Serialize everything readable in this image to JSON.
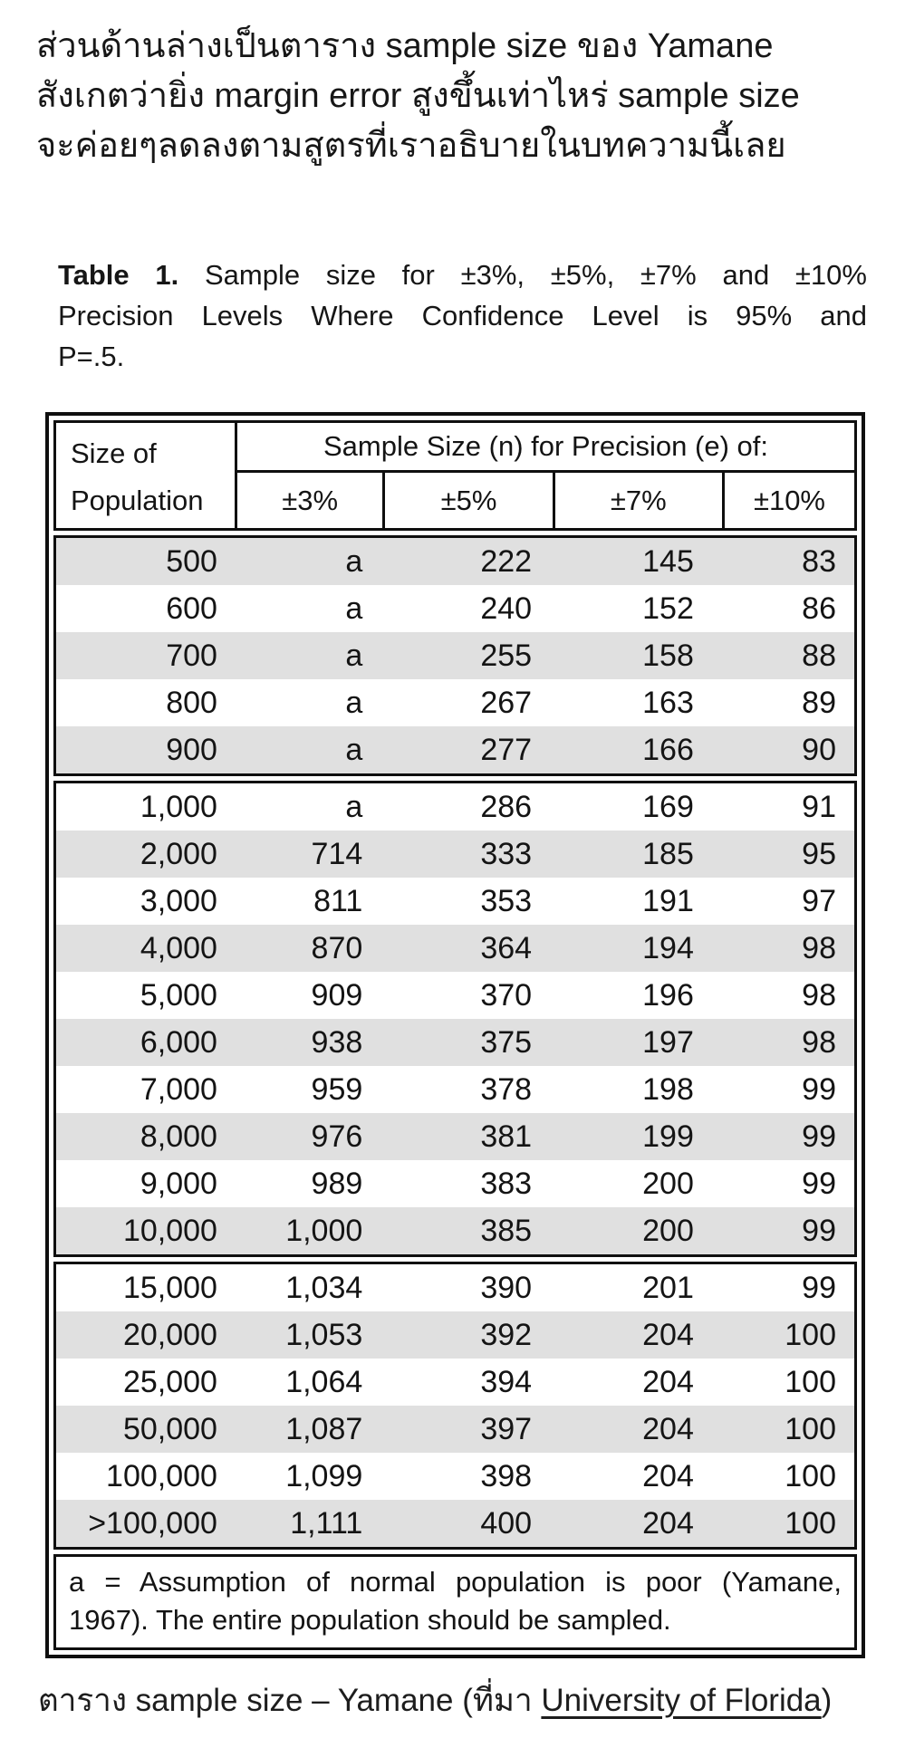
{
  "intro": {
    "lines": [
      "ส่วนด้านล่างเป็นตาราง sample size ของ Yamane",
      "สังเกตว่ายิ่ง margin error สูงขึ้นเท่าไหร่ sample size",
      "จะค่อยๆลดลงตามสูตรที่เราอธิบายในบทความนี้เลย"
    ]
  },
  "table_title": {
    "label": "Table 1.",
    "line1_rest": "Sample size for ±3%, ±5%, ±7% and ±10%",
    "line2": "Precision Levels Where Confidence Level is 95% and",
    "line3": "P=.5."
  },
  "table": {
    "header": {
      "row_label_line1": "Size of",
      "row_label_line2": "Population",
      "span_label": "Sample Size (n) for Precision (e) of:",
      "precision_cols": [
        "±3%",
        "±5%",
        "±7%",
        "±10%"
      ]
    },
    "columns": [
      "Size of Population",
      "±3%",
      "±5%",
      "±7%",
      "±10%"
    ],
    "groups": [
      {
        "rows": [
          [
            "500",
            "a",
            "222",
            "145",
            "83"
          ],
          [
            "600",
            "a",
            "240",
            "152",
            "86"
          ],
          [
            "700",
            "a",
            "255",
            "158",
            "88"
          ],
          [
            "800",
            "a",
            "267",
            "163",
            "89"
          ],
          [
            "900",
            "a",
            "277",
            "166",
            "90"
          ]
        ]
      },
      {
        "rows": [
          [
            "1,000",
            "a",
            "286",
            "169",
            "91"
          ],
          [
            "2,000",
            "714",
            "333",
            "185",
            "95"
          ],
          [
            "3,000",
            "811",
            "353",
            "191",
            "97"
          ],
          [
            "4,000",
            "870",
            "364",
            "194",
            "98"
          ],
          [
            "5,000",
            "909",
            "370",
            "196",
            "98"
          ],
          [
            "6,000",
            "938",
            "375",
            "197",
            "98"
          ],
          [
            "7,000",
            "959",
            "378",
            "198",
            "99"
          ],
          [
            "8,000",
            "976",
            "381",
            "199",
            "99"
          ],
          [
            "9,000",
            "989",
            "383",
            "200",
            "99"
          ],
          [
            "10,000",
            "1,000",
            "385",
            "200",
            "99"
          ]
        ]
      },
      {
        "rows": [
          [
            "15,000",
            "1,034",
            "390",
            "201",
            "99"
          ],
          [
            "20,000",
            "1,053",
            "392",
            "204",
            "100"
          ],
          [
            "25,000",
            "1,064",
            "394",
            "204",
            "100"
          ],
          [
            "50,000",
            "1,087",
            "397",
            "204",
            "100"
          ],
          [
            "100,000",
            "1,099",
            "398",
            "204",
            "100"
          ],
          [
            ">100,000",
            "1,111",
            "400",
            "204",
            "100"
          ]
        ]
      }
    ],
    "footnote_line1": "a = Assumption of normal population is poor (Yamane,",
    "footnote_line2": "1967).  The entire population should be sampled."
  },
  "caption": {
    "prefix": "ตาราง sample size – Yamane (ที่มา ",
    "link": "University of Florida",
    "suffix": ")"
  },
  "colors": {
    "row_shade": "#e0e0e0",
    "border": "#0f0f0f",
    "text": "#141414"
  }
}
